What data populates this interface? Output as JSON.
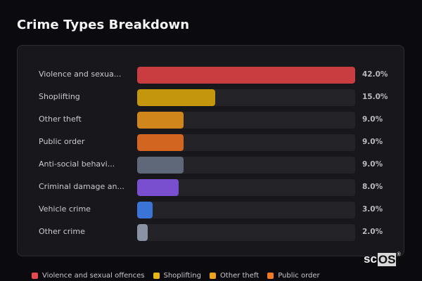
{
  "header": {
    "title": "Crime Types Breakdown"
  },
  "rows": [
    {
      "label": "Violence and sexua...",
      "full_label": "Violence and sexual offences",
      "value": 42.0,
      "value_label": "42.0%",
      "color": "#c93c3f"
    },
    {
      "label": "Shoplifting",
      "full_label": "Shoplifting",
      "value": 15.0,
      "value_label": "15.0%",
      "color": "#c4960e"
    },
    {
      "label": "Other theft",
      "full_label": "Other theft",
      "value": 9.0,
      "value_label": "9.0%",
      "color": "#d0861a"
    },
    {
      "label": "Public order",
      "full_label": "Public order",
      "value": 9.0,
      "value_label": "9.0%",
      "color": "#d2651f"
    },
    {
      "label": "Anti-social behavi...",
      "full_label": "Anti-social behaviour",
      "value": 9.0,
      "value_label": "9.0%",
      "color": "#5e6878"
    },
    {
      "label": "Criminal damage an...",
      "full_label": "Criminal damage and arson",
      "value": 8.0,
      "value_label": "8.0%",
      "color": "#7a4fcf"
    },
    {
      "label": "Vehicle crime",
      "full_label": "Vehicle crime",
      "value": 3.0,
      "value_label": "3.0%",
      "color": "#3a74d6"
    },
    {
      "label": "Other crime",
      "full_label": "Other crime",
      "value": 2.0,
      "value_label": "2.0%",
      "color": "#8a93a3"
    }
  ],
  "legend": [
    {
      "label": "Violence and sexual offences",
      "color": "#e5484d"
    },
    {
      "label": "Shoplifting",
      "color": "#e8b512"
    },
    {
      "label": "Other theft",
      "color": "#f0a21a"
    },
    {
      "label": "Public order",
      "color": "#f07a22"
    }
  ],
  "logo": {
    "prefix": "sc",
    "highlight": "OS",
    "mark": "®"
  },
  "chart_data": {
    "type": "bar",
    "orientation": "horizontal",
    "title": "Crime Types Breakdown",
    "categories": [
      "Violence and sexual offences",
      "Shoplifting",
      "Other theft",
      "Public order",
      "Anti-social behaviour",
      "Criminal damage and arson",
      "Vehicle crime",
      "Other crime"
    ],
    "values": [
      42.0,
      15.0,
      9.0,
      9.0,
      9.0,
      8.0,
      3.0,
      2.0
    ],
    "value_labels": [
      "42.0%",
      "15.0%",
      "9.0%",
      "9.0%",
      "9.0%",
      "8.0%",
      "3.0%",
      "2.0%"
    ],
    "unit": "%",
    "xlim": [
      0,
      42
    ],
    "grid": false,
    "legend": {
      "position": "bottom",
      "entries": [
        "Violence and sexual offences",
        "Shoplifting",
        "Other theft",
        "Public order"
      ]
    }
  }
}
